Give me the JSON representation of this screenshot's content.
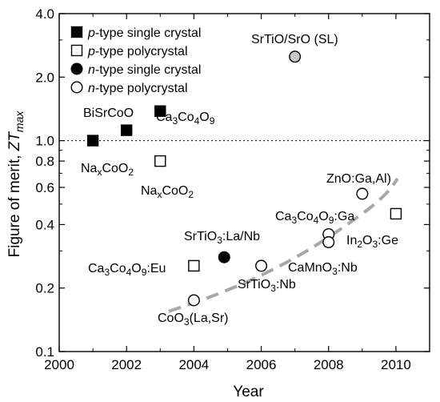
{
  "chart_data": {
    "type": "scatter",
    "title": "",
    "xlabel": "Year",
    "ylabel_parts": [
      "Figure of merit, ",
      "ZT",
      "max"
    ],
    "x_ticks": [
      "2000",
      "2002",
      "2004",
      "2006",
      "2008",
      "2010"
    ],
    "y_ticks": [
      "0.1",
      "0.2",
      "0.4",
      "0.6",
      "0.8",
      "1.0",
      "2.0",
      "4.0"
    ],
    "xlim": [
      2000,
      2011
    ],
    "ylim": [
      0.1,
      4.0
    ],
    "y_scale": "log",
    "reference_line": {
      "y": 1.0,
      "style": "dotted"
    },
    "grid": false,
    "legend_position": "top-left",
    "legend": [
      {
        "key": "p-single",
        "prefix": "p",
        "suffix": "-type single crystal",
        "marker": "square",
        "fill": "#000000"
      },
      {
        "key": "p-poly",
        "prefix": "p",
        "suffix": "-type polycrystal",
        "marker": "square",
        "fill": "#ffffff"
      },
      {
        "key": "n-single",
        "prefix": "n",
        "suffix": "-type single crystal",
        "marker": "circle",
        "fill": "#000000"
      },
      {
        "key": "n-poly",
        "prefix": "n",
        "suffix": "-type polycrystal",
        "marker": "circle",
        "fill": "#ffffff"
      }
    ],
    "points": [
      {
        "x": 2001.0,
        "y": 1.0,
        "marker": "square",
        "fill": "#000000",
        "label": [
          [
            "Na"
          ],
          [
            "x",
            "sub"
          ],
          [
            "CoO"
          ],
          [
            "2",
            "sub"
          ]
        ]
      },
      {
        "x": 2002.0,
        "y": 1.12,
        "marker": "square",
        "fill": "#000000",
        "label": [
          [
            "BiSrCoO"
          ]
        ]
      },
      {
        "x": 2003.0,
        "y": 1.38,
        "marker": "square",
        "fill": "#000000",
        "label": [
          [
            "Ca"
          ],
          [
            "3",
            "sub"
          ],
          [
            "Co"
          ],
          [
            "4",
            "sub"
          ],
          [
            "O"
          ],
          [
            "9",
            "sub"
          ]
        ]
      },
      {
        "x": 2003.0,
        "y": 0.8,
        "marker": "square",
        "fill": "#ffffff",
        "label": [
          [
            "Na"
          ],
          [
            "x",
            "sub"
          ],
          [
            "CoO"
          ],
          [
            "2",
            "sub"
          ]
        ]
      },
      {
        "x": 2004.0,
        "y": 0.255,
        "marker": "square",
        "fill": "#ffffff",
        "label": [
          [
            "Ca"
          ],
          [
            "3",
            "sub"
          ],
          [
            "Co"
          ],
          [
            "4",
            "sub"
          ],
          [
            "O"
          ],
          [
            "9",
            "sub"
          ],
          [
            ":Eu"
          ]
        ]
      },
      {
        "x": 2010.0,
        "y": 0.45,
        "marker": "square",
        "fill": "#ffffff",
        "label": [
          [
            "Ca"
          ],
          [
            "3",
            "sub"
          ],
          [
            "Co"
          ],
          [
            "4",
            "sub"
          ],
          [
            "O"
          ],
          [
            "9",
            "sub"
          ],
          [
            ":Ga"
          ]
        ]
      },
      {
        "x": 2004.9,
        "y": 0.28,
        "marker": "circle",
        "fill": "#000000",
        "label": [
          [
            "SrTiO"
          ],
          [
            "3",
            "sub"
          ],
          [
            ":La/Nb"
          ]
        ]
      },
      {
        "x": 2007.0,
        "y": 2.5,
        "marker": "circle",
        "fill": "#c8c8c8",
        "label": [
          [
            "SrTiO/SrO (SL)"
          ]
        ]
      },
      {
        "x": 2004.0,
        "y": 0.175,
        "marker": "circle",
        "fill": "#ffffff",
        "label": [
          [
            "CoO"
          ],
          [
            "3",
            "sub"
          ],
          [
            "(La,Sr)"
          ]
        ]
      },
      {
        "x": 2006.0,
        "y": 0.255,
        "marker": "circle",
        "fill": "#ffffff",
        "label": [
          [
            "SrTiO"
          ],
          [
            "3",
            "sub"
          ],
          [
            ":Nb"
          ]
        ]
      },
      {
        "x": 2008.0,
        "y": 0.36,
        "marker": "circle",
        "fill": "#ffffff",
        "label": [
          [
            "In"
          ],
          [
            "2",
            "sub"
          ],
          [
            "O"
          ],
          [
            "3",
            "sub"
          ],
          [
            ":Ge"
          ]
        ]
      },
      {
        "x": 2008.0,
        "y": 0.33,
        "marker": "circle",
        "fill": "#ffffff",
        "label": [
          [
            "CaMnO"
          ],
          [
            "3",
            "sub"
          ],
          [
            ":Nb"
          ]
        ]
      },
      {
        "x": 2009.0,
        "y": 0.56,
        "marker": "circle",
        "fill": "#ffffff",
        "label": [
          [
            "ZnO:Ga,Al)"
          ]
        ]
      }
    ],
    "trend_curve": {
      "style": "dashed",
      "color": "#a8a8a8",
      "x": [
        2003.25,
        2004.5,
        2006.0,
        2007.5,
        2009.0,
        2009.7,
        2010.05
      ],
      "y": [
        0.155,
        0.182,
        0.23,
        0.31,
        0.45,
        0.56,
        0.66
      ]
    }
  }
}
